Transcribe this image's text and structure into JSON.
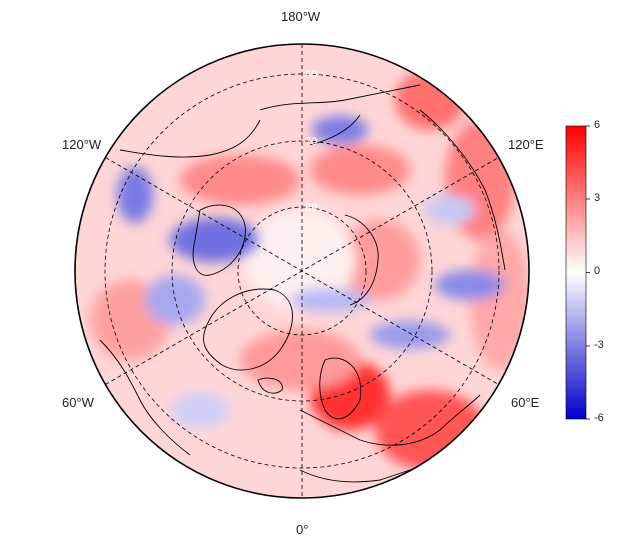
{
  "map": {
    "projection": "north-polar-stereographic",
    "colormap": [
      "#0000c8",
      "#ffffff",
      "#ff0000"
    ],
    "longitude_labels": {
      "top": "180°W",
      "upper_left": "120°W",
      "upper_right": "120°E",
      "lower_left": "60°W",
      "lower_right": "60°E",
      "bottom": "0°"
    },
    "latitude_labels": [
      "60",
      "70",
      "80"
    ]
  },
  "colorbar": {
    "range": [
      -6,
      6
    ],
    "ticks": [
      "6",
      "3",
      "0",
      "-3",
      "-6"
    ]
  }
}
